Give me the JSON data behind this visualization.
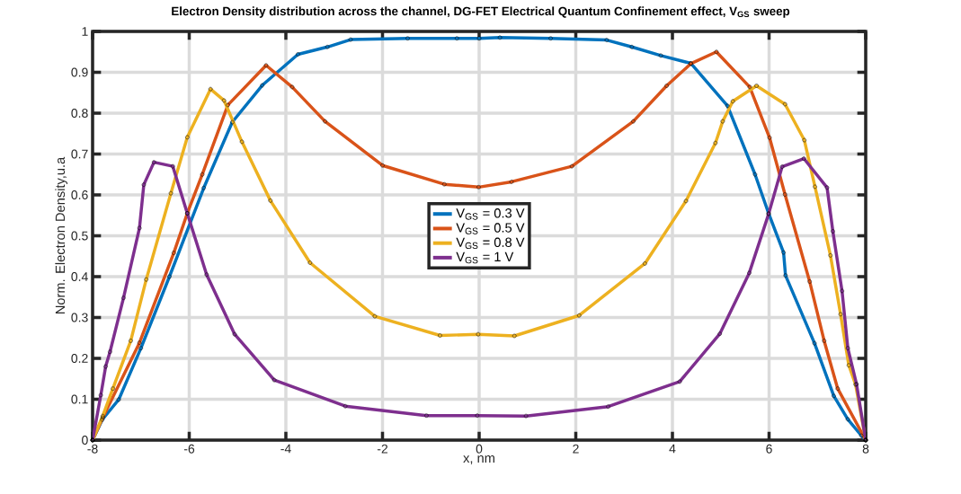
{
  "chart_data": {
    "type": "line",
    "title": "Electron Density distribution across the channel, DG-FET Electrical Quantum Confinement effect, V$_{GS}$ sweep",
    "xlabel": "x, nm",
    "ylabel": "Norm. Electron Density,u.a",
    "xlim": [
      -8,
      8
    ],
    "ylim": [
      0,
      1
    ],
    "xticks": [
      -8,
      -6,
      -4,
      -2,
      0,
      2,
      4,
      6,
      8
    ],
    "yticks": [
      0,
      0.1,
      0.2,
      0.3,
      0.4,
      0.5,
      0.6,
      0.7,
      0.8,
      0.9,
      1
    ],
    "grid": true,
    "legend": "center",
    "marker": "circle",
    "line_style": "solid",
    "series": [
      {
        "name": "V$_{GS}$ = 0.3 V",
        "color": "#0072bd",
        "x": [
          -8,
          -7.8,
          -7.46,
          -7.0,
          -6.41,
          -5.7,
          -5.11,
          -4.49,
          -3.75,
          -3.14,
          -2.66,
          -1.48,
          -0.46,
          0,
          0.43,
          1.48,
          2.64,
          3.16,
          3.76,
          4.38,
          5.14,
          5.71,
          5.99,
          6.3,
          6.34,
          6.94,
          7.34,
          7.63,
          7.91,
          8
        ],
        "values": [
          0,
          0.05,
          0.099,
          0.225,
          0.4,
          0.617,
          0.778,
          0.868,
          0.944,
          0.962,
          0.98,
          0.983,
          0.983,
          0.983,
          0.985,
          0.983,
          0.979,
          0.962,
          0.941,
          0.922,
          0.818,
          0.65,
          0.555,
          0.459,
          0.403,
          0.237,
          0.108,
          0.051,
          0.011,
          0
        ]
      },
      {
        "name": "V$_{GS}$ = 0.5 V",
        "color": "#d95319",
        "x": [
          -8,
          -7.79,
          -7.03,
          -6.32,
          -6.04,
          -5.73,
          -5.2,
          -4.41,
          -3.87,
          -3.19,
          -2.0,
          -0.72,
          -0.01,
          0.67,
          1.92,
          3.19,
          3.88,
          4.38,
          4.91,
          5.6,
          6.01,
          6.33,
          6.84,
          7.14,
          7.42,
          8
        ],
        "values": [
          0,
          0.055,
          0.238,
          0.458,
          0.555,
          0.65,
          0.82,
          0.917,
          0.864,
          0.78,
          0.672,
          0.626,
          0.619,
          0.632,
          0.67,
          0.78,
          0.867,
          0.921,
          0.95,
          0.864,
          0.74,
          0.601,
          0.388,
          0.243,
          0.126,
          0
        ]
      },
      {
        "name": "V$_{GS}$ = 0.8 V",
        "color": "#edb120",
        "x": [
          -8,
          -7.79,
          -7.58,
          -7.21,
          -6.89,
          -6.38,
          -6.04,
          -5.56,
          -5.28,
          -4.91,
          -4.32,
          -3.5,
          -2.16,
          -0.81,
          -0.02,
          0.73,
          2.07,
          3.43,
          4.28,
          4.89,
          5.04,
          5.25,
          5.74,
          6.33,
          6.73,
          6.95,
          7.27,
          7.48,
          7.65,
          7.79,
          8
        ],
        "values": [
          0,
          0.059,
          0.126,
          0.243,
          0.393,
          0.604,
          0.741,
          0.859,
          0.831,
          0.73,
          0.586,
          0.434,
          0.303,
          0.256,
          0.259,
          0.255,
          0.305,
          0.432,
          0.585,
          0.727,
          0.78,
          0.829,
          0.867,
          0.822,
          0.734,
          0.62,
          0.452,
          0.308,
          0.183,
          0.136,
          0
        ]
      },
      {
        "name": "V$_{GS}$ = 1 V",
        "color": "#7e2f8e",
        "x": [
          -8,
          -7.83,
          -7.73,
          -7.64,
          -7.36,
          -7.03,
          -6.94,
          -6.73,
          -6.34,
          -6.04,
          -5.64,
          -5.06,
          -4.24,
          -2.77,
          -1.09,
          -0.04,
          0.97,
          2.67,
          4.15,
          4.98,
          5.59,
          5.99,
          6.27,
          6.72,
          7.2,
          7.32,
          7.51,
          7.63,
          7.81,
          8
        ],
        "values": [
          0,
          0.11,
          0.18,
          0.216,
          0.348,
          0.519,
          0.625,
          0.68,
          0.67,
          0.555,
          0.405,
          0.259,
          0.147,
          0.083,
          0.06,
          0.06,
          0.059,
          0.082,
          0.143,
          0.26,
          0.409,
          0.553,
          0.669,
          0.689,
          0.618,
          0.511,
          0.365,
          0.225,
          0.137,
          0
        ]
      }
    ]
  }
}
